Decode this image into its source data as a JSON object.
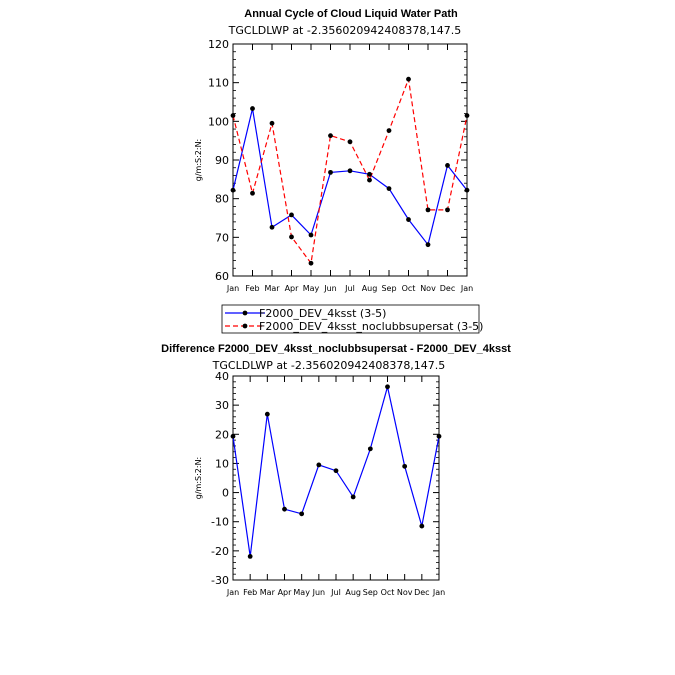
{
  "chart_data": [
    {
      "type": "line",
      "title": "Annual Cycle of Cloud Liquid Water Path",
      "subtitle": "TGCLDLWP at -2.356020942408378,147.5",
      "ylabel": "g/m:S:2:N:",
      "xlabel": "",
      "categories": [
        "Jan",
        "Feb",
        "Mar",
        "Apr",
        "May",
        "Jun",
        "Jul",
        "Aug",
        "Sep",
        "Oct",
        "Nov",
        "Dec",
        "Jan"
      ],
      "ylim": [
        60,
        120
      ],
      "yticks": [
        60,
        70,
        80,
        90,
        100,
        110,
        120
      ],
      "series": [
        {
          "name": "F2000_DEV_4ksst (3-5)",
          "color": "#0000ff",
          "dash": "solid",
          "values": [
            82.2,
            103.3,
            72.6,
            75.8,
            70.6,
            86.8,
            87.2,
            86.3,
            82.6,
            74.6,
            68.1,
            88.6,
            82.2
          ]
        },
        {
          "name": "F2000_DEV_4ksst_noclubbsupersat (3-5)",
          "color": "#ff0000",
          "dash": "dashed",
          "values": [
            101.5,
            81.4,
            99.5,
            70.1,
            63.3,
            96.3,
            94.7,
            84.8,
            97.6,
            110.9,
            77.1,
            77.1,
            101.5
          ]
        }
      ],
      "legend": "bottom"
    },
    {
      "type": "line",
      "title": "Difference F2000_DEV_4ksst_noclubbsupersat - F2000_DEV_4ksst",
      "subtitle": "TGCLDLWP at -2.356020942408378,147.5",
      "ylabel": "g/m:S:2:N:",
      "xlabel": "",
      "categories": [
        "Jan",
        "Feb",
        "Mar",
        "Apr",
        "May",
        "Jun",
        "Jul",
        "Aug",
        "Sep",
        "Oct",
        "Nov",
        "Dec",
        "Jan"
      ],
      "ylim": [
        -30,
        40
      ],
      "yticks": [
        -30,
        -20,
        -10,
        0,
        10,
        20,
        30,
        40
      ],
      "series": [
        {
          "name": "Difference",
          "color": "#0000ff",
          "dash": "solid",
          "values": [
            19.3,
            -21.9,
            26.9,
            -5.7,
            -7.3,
            9.5,
            7.5,
            -1.5,
            15.0,
            36.3,
            9.0,
            -11.5,
            19.3
          ]
        }
      ]
    }
  ]
}
